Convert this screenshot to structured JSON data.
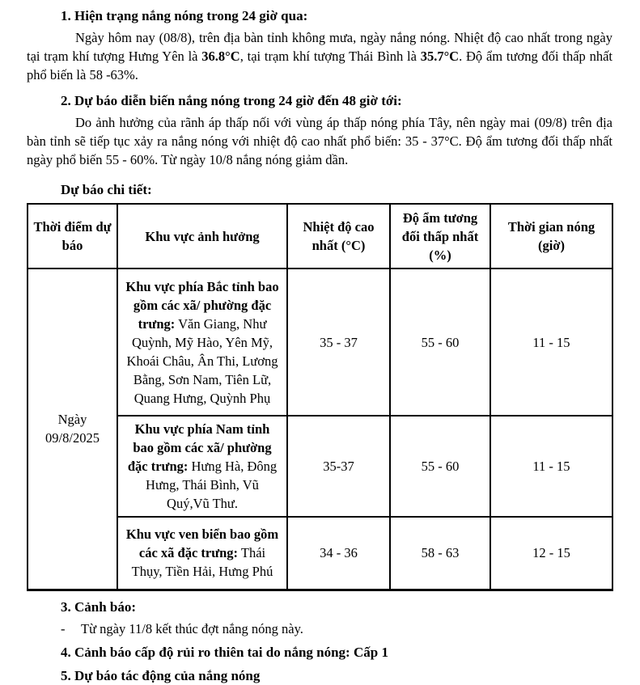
{
  "document": {
    "section1": {
      "heading": "1. Hiện trạng nắng nóng trong 24 giờ qua:",
      "para": {
        "t1": "Ngày hôm nay (08/8), trên địa bàn tỉnh không mưa, ngày nắng nóng. Nhiệt độ cao nhất trong ngày tại trạm khí tượng Hưng Yên là ",
        "b1": "36.8°C",
        "t2": ", tại trạm khí tượng Thái Bình là ",
        "b2": "35.7°C",
        "t3": ". Độ ẩm tương đối thấp nhất phổ biến là 58 -63%."
      }
    },
    "section2": {
      "heading": "2. Dự báo diễn biến nắng nóng trong 24 giờ đến 48 giờ tới:",
      "para": "Do ảnh hưởng của rãnh áp thấp nối với vùng áp thấp nóng phía Tây, nên ngày mai (09/8) trên địa bàn tỉnh sẽ tiếp tục xảy ra nắng nóng với nhiệt độ cao nhất phổ biến: 35 - 37°C. Độ ẩm tương đối thấp nhất ngày phổ biến 55 - 60%. Từ ngày 10/8 nắng nóng giảm dần."
    },
    "table_label": "Dự báo chi tiết:",
    "table": {
      "headers": [
        "Thời điểm dự báo",
        "Khu vực ảnh hưởng",
        "Nhiệt độ cao nhất (°C)",
        "Độ ẩm tương đối thấp nhất (%)",
        "Thời gian nóng (giờ)"
      ],
      "time_cell": "Ngày 09/8/2025",
      "rows": [
        {
          "region_bold": "Khu vực phía Bắc tỉnh bao gồm các xã/ phường đặc trưng:",
          "region_rest": " Văn Giang, Như Quỳnh, Mỹ Hào, Yên Mỹ, Khoái Châu, Ân Thi, Lương Bằng, Sơn Nam, Tiên Lữ, Quang Hưng, Quỳnh Phụ",
          "temp": "35 - 37",
          "humidity": "55 - 60",
          "hours": "11 - 15"
        },
        {
          "region_bold": "Khu vực phía Nam tỉnh bao gồm các xã/ phường đặc trưng:",
          "region_rest": " Hưng Hà,  Đông Hưng, Thái Bình, Vũ Quý,Vũ Thư.",
          "temp": "35-37",
          "humidity": "55 - 60",
          "hours": "11 - 15"
        },
        {
          "region_bold": "Khu vực ven biển bao gồm các xã đặc trưng:",
          "region_rest": " Thái Thụy, Tiền Hải, Hưng Phú",
          "temp": "34 - 36",
          "humidity": "58 - 63",
          "hours": "12 - 15"
        }
      ]
    },
    "section3": {
      "heading": "3. Cảnh báo:",
      "dash": "-",
      "bullet": "Từ ngày 11/8 kết thúc đợt nắng nóng này."
    },
    "section4": {
      "heading": "4. Cảnh báo cấp độ rủi ro thiên tai do nắng nóng: Cấp 1"
    },
    "section5": {
      "heading": "5. Dự báo tác động của nắng nóng"
    }
  }
}
